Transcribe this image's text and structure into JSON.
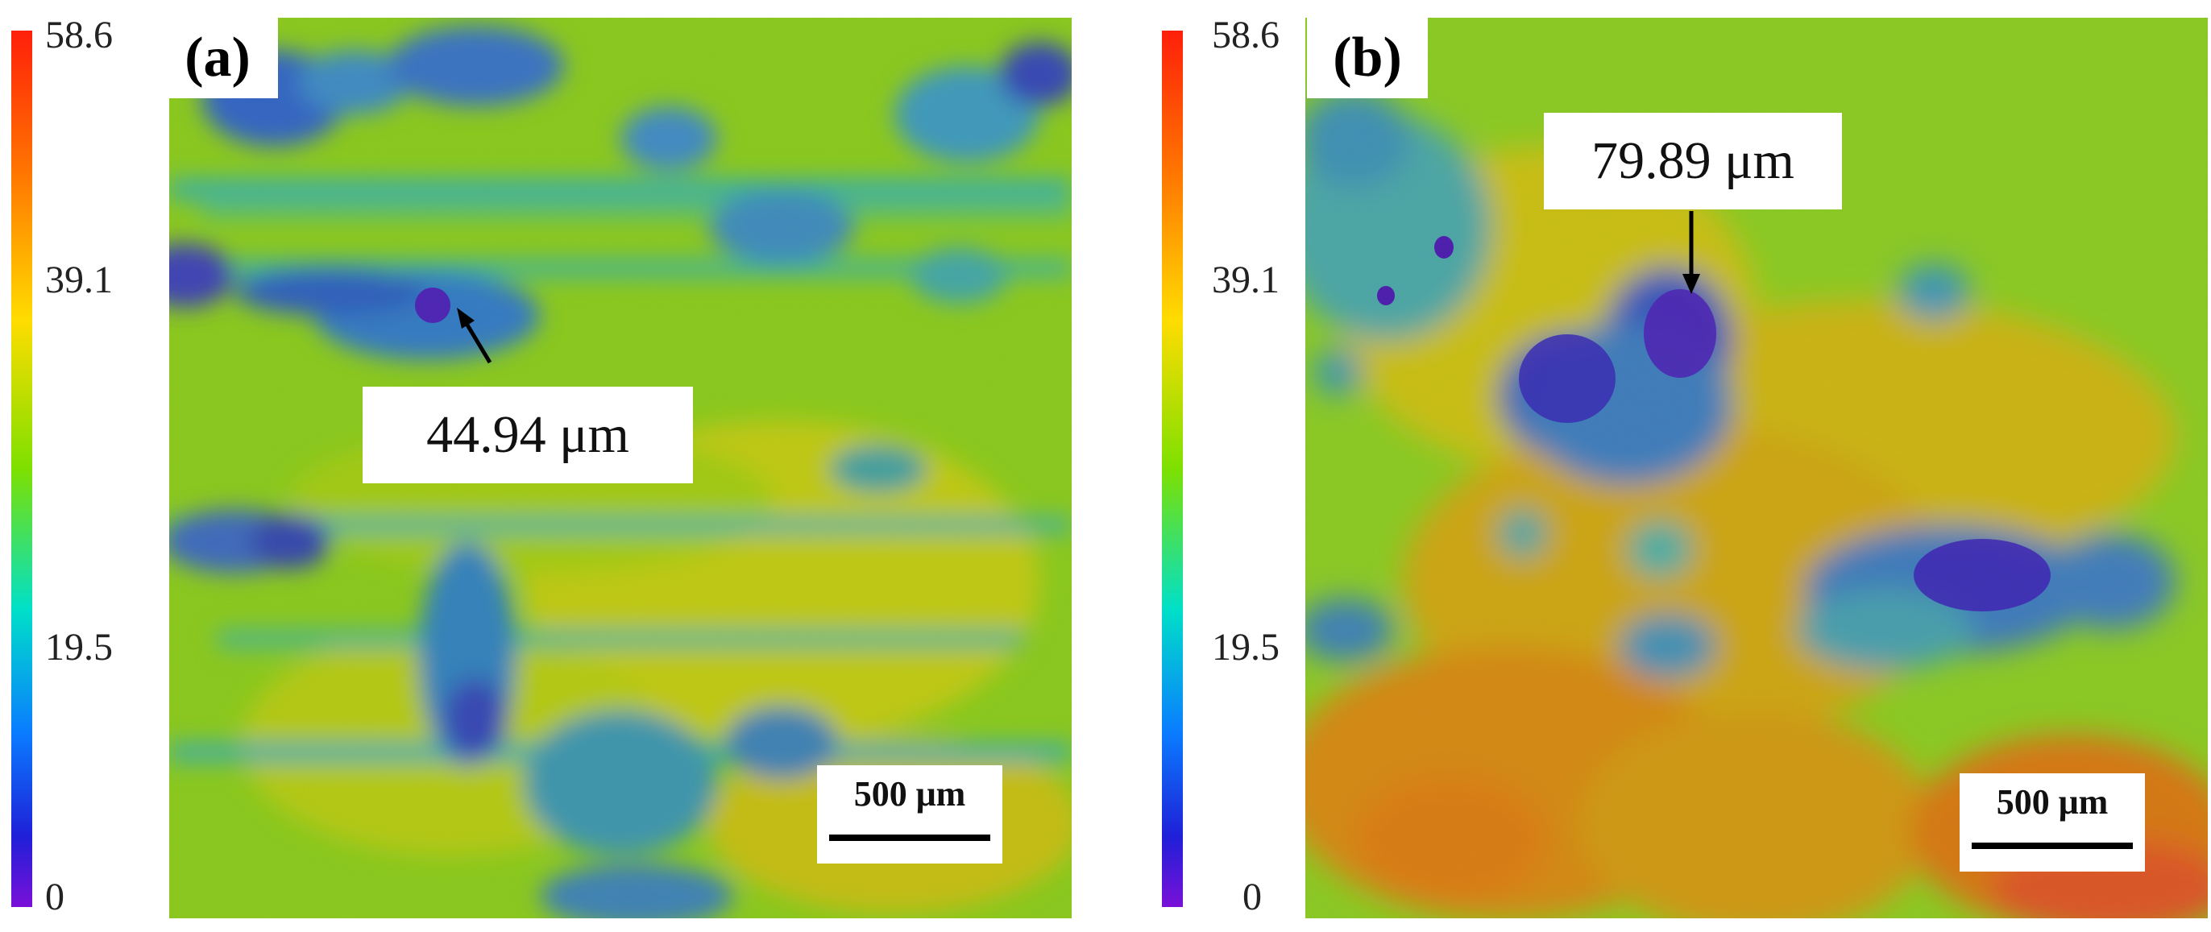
{
  "colorbar": {
    "max_label": "58.6",
    "upper_label": "39.1",
    "lower_label": "19.5",
    "min_label": "0",
    "colors": [
      "#ff1f0a",
      "#ff7a00",
      "#ffdc00",
      "#7ee000",
      "#00e0c8",
      "#0a7dff",
      "#1f1fd8",
      "#7a10d8"
    ]
  },
  "panels": {
    "a": {
      "label": "(a)",
      "callout": "44.94 μm",
      "scale_bar": "500 μm"
    },
    "b": {
      "label": "(b)",
      "callout": "79.89 μm",
      "scale_bar": "500 μm"
    }
  }
}
